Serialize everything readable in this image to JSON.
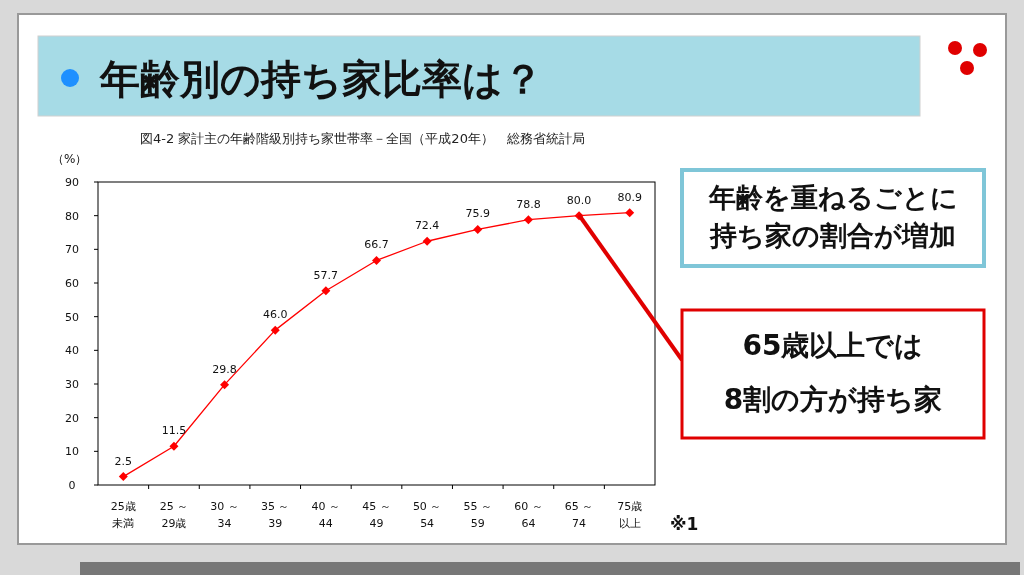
{
  "chart_data": {
    "type": "line",
    "title": "年齢別の持ち家比率は？",
    "subtitle": "図4-2 家計主の年齢階級別持ち家世帯率－全国（平成20年）　総務省統計局",
    "ylabel": "（%）",
    "categories": [
      "25歳未満",
      "25 ～\n29歳",
      "30 ～\n34",
      "35 ～\n39",
      "40 ～\n44",
      "45 ～\n49",
      "50 ～\n54",
      "55 ～\n59",
      "60 ～\n64",
      "65 ～\n74",
      "75歳以上"
    ],
    "series": [
      {
        "color": "#ff0000",
        "values": [
          2.5,
          11.5,
          29.8,
          46.0,
          57.7,
          66.7,
          72.4,
          75.9,
          78.8,
          80.0,
          80.9
        ],
        "value_labels": [
          "2.5",
          "11.5",
          "29.8",
          "46.0",
          "57.7",
          "66.7",
          "72.4",
          "75.9",
          "78.8",
          "80.0",
          "80.9"
        ]
      }
    ],
    "ylim": [
      0,
      90
    ],
    "yticks": [
      0,
      10,
      20,
      30,
      40,
      50,
      60,
      70,
      80,
      90
    ],
    "marker": "diamond",
    "line_style": "solid",
    "grid": false,
    "annotations": [
      "年齢を重ねるごとに持ち家の割合が増加",
      "65歳以上では8割の方が持ち家",
      "※1"
    ]
  }
}
